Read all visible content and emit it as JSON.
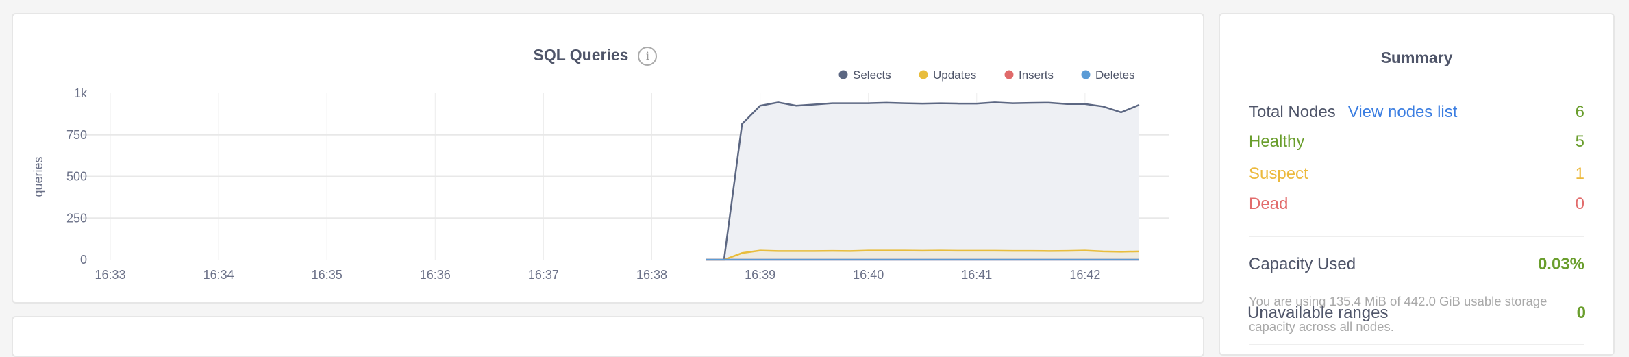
{
  "chart_card": {
    "title": "SQL Queries",
    "info_icon": "info-icon"
  },
  "colors": {
    "selects": "#5c6782",
    "selects_fill": "#eef0f4",
    "updates": "#e8bd3c",
    "inserts": "#e06a6a",
    "deletes": "#5b9bd5",
    "green": "#6a9e2d",
    "yellow": "#ecb93d",
    "red": "#e26c6c",
    "link": "#3a7de1"
  },
  "chart_data": {
    "type": "area",
    "title": "SQL Queries",
    "xlabel": "",
    "ylabel": "queries",
    "ylim": [
      0,
      1000
    ],
    "yticks": [
      "0",
      "250",
      "500",
      "750",
      "1k"
    ],
    "ytick_values": [
      0,
      250,
      500,
      750,
      1000
    ],
    "xticks": [
      "16:33",
      "16:34",
      "16:35",
      "16:36",
      "16:37",
      "16:38",
      "16:39",
      "16:40",
      "16:41",
      "16:42"
    ],
    "xlim": [
      "16:33:00",
      "16:42:30"
    ],
    "grid": true,
    "legend_placement": "top-right",
    "x": [
      "16:38:30",
      "16:38:40",
      "16:38:50",
      "16:39:00",
      "16:39:10",
      "16:39:20",
      "16:39:30",
      "16:39:40",
      "16:39:50",
      "16:40:00",
      "16:40:10",
      "16:40:20",
      "16:40:30",
      "16:40:40",
      "16:40:50",
      "16:41:00",
      "16:41:10",
      "16:41:20",
      "16:41:30",
      "16:41:40",
      "16:41:50",
      "16:42:00",
      "16:42:10",
      "16:42:20",
      "16:42:30"
    ],
    "series": [
      {
        "name": "Selects",
        "values": [
          0,
          0,
          815,
          925,
          945,
          925,
          932,
          940,
          940,
          940,
          943,
          940,
          938,
          940,
          938,
          938,
          945,
          940,
          942,
          943,
          935,
          935,
          920,
          885,
          930
        ]
      },
      {
        "name": "Updates",
        "values": [
          0,
          0,
          40,
          55,
          52,
          52,
          52,
          53,
          52,
          55,
          55,
          55,
          54,
          55,
          54,
          54,
          54,
          53,
          53,
          52,
          53,
          55,
          50,
          48,
          50
        ]
      },
      {
        "name": "Inserts",
        "values": [
          0,
          0,
          0,
          0,
          0,
          0,
          0,
          0,
          0,
          0,
          0,
          0,
          0,
          0,
          0,
          0,
          0,
          0,
          0,
          0,
          0,
          0,
          0,
          0,
          0
        ]
      },
      {
        "name": "Deletes",
        "values": [
          0,
          0,
          0,
          0,
          0,
          0,
          0,
          0,
          0,
          0,
          0,
          0,
          0,
          0,
          0,
          0,
          0,
          0,
          0,
          0,
          0,
          0,
          0,
          0,
          0
        ]
      }
    ]
  },
  "summary": {
    "title": "Summary",
    "total_nodes_label": "Total Nodes",
    "view_nodes_link": "View nodes list",
    "total_nodes": "6",
    "healthy_label": "Healthy",
    "healthy": "5",
    "suspect_label": "Suspect",
    "suspect": "1",
    "dead_label": "Dead",
    "dead": "0",
    "capacity_label": "Capacity Used",
    "capacity_value": "0.03%",
    "capacity_desc": "You are using 135.4 MiB of 442.0 GiB usable storage capacity across all nodes.",
    "unavailable_label": "Unavailable ranges",
    "unavailable_value": "0"
  }
}
